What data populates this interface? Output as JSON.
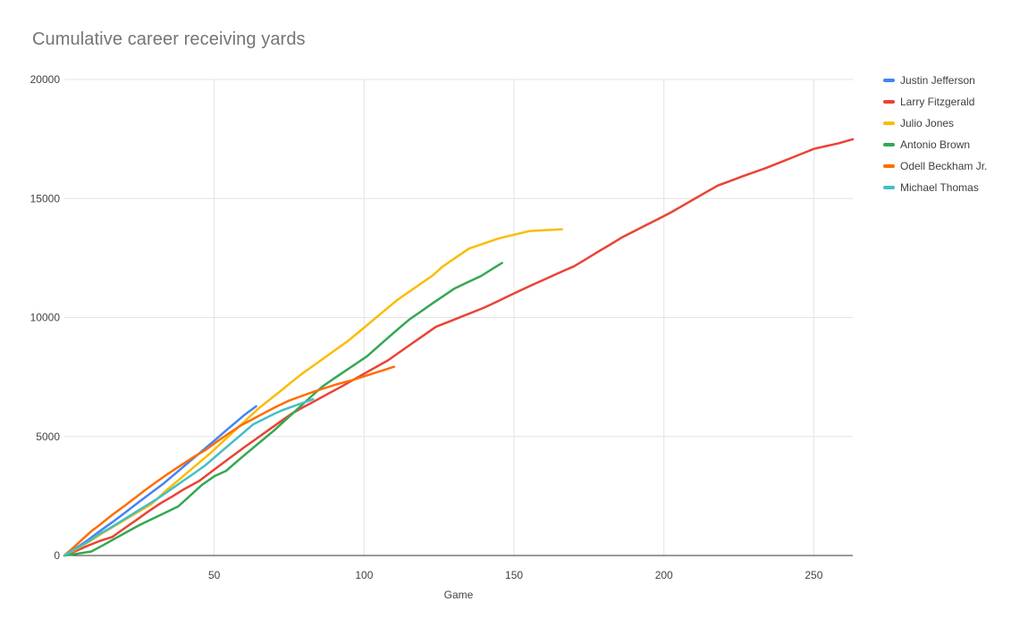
{
  "chart_data": {
    "type": "line",
    "title": "Cumulative career receiving yards",
    "xlabel": "Game",
    "ylabel": "",
    "xlim": [
      0,
      263
    ],
    "ylim": [
      0,
      20000
    ],
    "x_ticks": [
      50,
      100,
      150,
      200,
      250
    ],
    "y_ticks": [
      0,
      5000,
      10000,
      15000,
      20000
    ],
    "grid": true,
    "legend_position": "right",
    "series": [
      {
        "name": "Justin Jefferson",
        "color": "#4285F4",
        "points": [
          [
            0,
            0
          ],
          [
            4,
            320
          ],
          [
            8,
            660
          ],
          [
            12,
            1040
          ],
          [
            16,
            1400
          ],
          [
            20,
            1780
          ],
          [
            25,
            2260
          ],
          [
            29,
            2640
          ],
          [
            33,
            3016
          ],
          [
            37,
            3440
          ],
          [
            41,
            3870
          ],
          [
            45,
            4290
          ],
          [
            50,
            4825
          ],
          [
            54,
            5260
          ],
          [
            57,
            5580
          ],
          [
            60,
            5899
          ],
          [
            64,
            6270
          ]
        ]
      },
      {
        "name": "Larry Fitzgerald",
        "color": "#EA4335",
        "points": [
          [
            0,
            0
          ],
          [
            4,
            200
          ],
          [
            8,
            420
          ],
          [
            12,
            620
          ],
          [
            16,
            780
          ],
          [
            20,
            1140
          ],
          [
            24,
            1490
          ],
          [
            28,
            1850
          ],
          [
            32,
            2189
          ],
          [
            36,
            2480
          ],
          [
            40,
            2790
          ],
          [
            45,
            3135
          ],
          [
            50,
            3610
          ],
          [
            55,
            4080
          ],
          [
            60,
            4544
          ],
          [
            64,
            4900
          ],
          [
            68,
            5260
          ],
          [
            72,
            5620
          ],
          [
            76,
            5975
          ],
          [
            80,
            6250
          ],
          [
            84,
            6520
          ],
          [
            88,
            6800
          ],
          [
            92,
            7067
          ],
          [
            96,
            7350
          ],
          [
            100,
            7640
          ],
          [
            104,
            7920
          ],
          [
            108,
            8204
          ],
          [
            112,
            8560
          ],
          [
            116,
            8910
          ],
          [
            120,
            9260
          ],
          [
            124,
            9615
          ],
          [
            128,
            9810
          ],
          [
            132,
            10010
          ],
          [
            136,
            10210
          ],
          [
            140,
            10413
          ],
          [
            144,
            10650
          ],
          [
            148,
            10890
          ],
          [
            152,
            11130
          ],
          [
            156,
            11367
          ],
          [
            160,
            11590
          ],
          [
            164,
            11820
          ],
          [
            167,
            11990
          ],
          [
            170,
            12151
          ],
          [
            174,
            12450
          ],
          [
            178,
            12760
          ],
          [
            182,
            13060
          ],
          [
            186,
            13366
          ],
          [
            190,
            13620
          ],
          [
            194,
            13880
          ],
          [
            198,
            14130
          ],
          [
            202,
            14389
          ],
          [
            206,
            14680
          ],
          [
            210,
            14970
          ],
          [
            214,
            15260
          ],
          [
            218,
            15545
          ],
          [
            222,
            15730
          ],
          [
            226,
            15920
          ],
          [
            230,
            16100
          ],
          [
            234,
            16279
          ],
          [
            238,
            16480
          ],
          [
            242,
            16680
          ],
          [
            246,
            16880
          ],
          [
            250,
            17083
          ],
          [
            254,
            17200
          ],
          [
            258,
            17310
          ],
          [
            263,
            17490
          ]
        ]
      },
      {
        "name": "Julio Jones",
        "color": "#FBBC04",
        "points": [
          [
            0,
            0
          ],
          [
            4,
            270
          ],
          [
            8,
            560
          ],
          [
            13,
            959
          ],
          [
            17,
            1260
          ],
          [
            21,
            1560
          ],
          [
            25,
            1860
          ],
          [
            29,
            2157
          ],
          [
            31,
            2390
          ],
          [
            34,
            2737
          ],
          [
            38,
            3160
          ],
          [
            42,
            3590
          ],
          [
            46,
            4010
          ],
          [
            49,
            4330
          ],
          [
            53,
            4800
          ],
          [
            57,
            5270
          ],
          [
            61,
            5740
          ],
          [
            65,
            6201
          ],
          [
            69,
            6600
          ],
          [
            72,
            6900
          ],
          [
            76,
            7310
          ],
          [
            79,
            7610
          ],
          [
            83,
            7970
          ],
          [
            87,
            8330
          ],
          [
            91,
            8690
          ],
          [
            95,
            9054
          ],
          [
            99,
            9470
          ],
          [
            103,
            9890
          ],
          [
            107,
            10310
          ],
          [
            111,
            10731
          ],
          [
            115,
            11080
          ],
          [
            119,
            11430
          ],
          [
            123,
            11780
          ],
          [
            126,
            12125
          ],
          [
            130,
            12470
          ],
          [
            135,
            12896
          ],
          [
            140,
            13110
          ],
          [
            145,
            13330
          ],
          [
            150,
            13480
          ],
          [
            155,
            13629
          ],
          [
            160,
            13670
          ],
          [
            166,
            13703
          ]
        ]
      },
      {
        "name": "Antonio Brown",
        "color": "#34A853",
        "points": [
          [
            0,
            0
          ],
          [
            5,
            90
          ],
          [
            9,
            167
          ],
          [
            13,
            440
          ],
          [
            17,
            720
          ],
          [
            21,
            1000
          ],
          [
            25,
            1275
          ],
          [
            29,
            1520
          ],
          [
            33,
            1760
          ],
          [
            38,
            2062
          ],
          [
            42,
            2520
          ],
          [
            46,
            2980
          ],
          [
            50,
            3330
          ],
          [
            54,
            3561
          ],
          [
            58,
            4000
          ],
          [
            62,
            4420
          ],
          [
            66,
            4840
          ],
          [
            70,
            5259
          ],
          [
            74,
            5720
          ],
          [
            78,
            6180
          ],
          [
            82,
            6640
          ],
          [
            86,
            7093
          ],
          [
            90,
            7440
          ],
          [
            94,
            7780
          ],
          [
            98,
            8120
          ],
          [
            101,
            8377
          ],
          [
            105,
            8820
          ],
          [
            109,
            9260
          ],
          [
            112,
            9590
          ],
          [
            115,
            9910
          ],
          [
            119,
            10260
          ],
          [
            123,
            10610
          ],
          [
            127,
            10950
          ],
          [
            130,
            11207
          ],
          [
            134,
            11450
          ],
          [
            139,
            11746
          ],
          [
            143,
            12060
          ],
          [
            146,
            12291
          ]
        ]
      },
      {
        "name": "Odell Beckham Jr.",
        "color": "#FF6D01",
        "points": [
          [
            0,
            0
          ],
          [
            3,
            330
          ],
          [
            6,
            680
          ],
          [
            9,
            1020
          ],
          [
            12,
            1305
          ],
          [
            16,
            1710
          ],
          [
            20,
            2080
          ],
          [
            24,
            2460
          ],
          [
            27,
            2755
          ],
          [
            31,
            3120
          ],
          [
            35,
            3470
          ],
          [
            39,
            3800
          ],
          [
            43,
            4122
          ],
          [
            45,
            4280
          ],
          [
            47,
            4424
          ],
          [
            51,
            4790
          ],
          [
            55,
            5140
          ],
          [
            59,
            5476
          ],
          [
            63,
            5740
          ],
          [
            67,
            6010
          ],
          [
            71,
            6270
          ],
          [
            75,
            6511
          ],
          [
            78,
            6650
          ],
          [
            82,
            6830
          ],
          [
            86,
            7000
          ],
          [
            90,
            7160
          ],
          [
            93,
            7270
          ],
          [
            96,
            7367
          ],
          [
            100,
            7530
          ],
          [
            104,
            7690
          ],
          [
            107,
            7810
          ],
          [
            110,
            7932
          ]
        ]
      },
      {
        "name": "Michael Thomas",
        "color": "#46BDC6",
        "points": [
          [
            0,
            0
          ],
          [
            4,
            300
          ],
          [
            8,
            590
          ],
          [
            11,
            850
          ],
          [
            15,
            1137
          ],
          [
            19,
            1450
          ],
          [
            23,
            1760
          ],
          [
            27,
            2070
          ],
          [
            31,
            2382
          ],
          [
            35,
            2730
          ],
          [
            39,
            3080
          ],
          [
            43,
            3430
          ],
          [
            47,
            3787
          ],
          [
            51,
            4220
          ],
          [
            55,
            4650
          ],
          [
            59,
            5080
          ],
          [
            63,
            5512
          ],
          [
            66,
            5700
          ],
          [
            70,
            5950
          ],
          [
            73,
            6121
          ],
          [
            78,
            6345
          ],
          [
            83,
            6569
          ]
        ]
      }
    ]
  },
  "theme": {
    "background": "#ffffff",
    "title_color": "#757575",
    "tick_color": "#424242",
    "axis_line_color": "#333333",
    "grid_color": "#e3e3e3",
    "legend_text_color": "#3c4043"
  }
}
